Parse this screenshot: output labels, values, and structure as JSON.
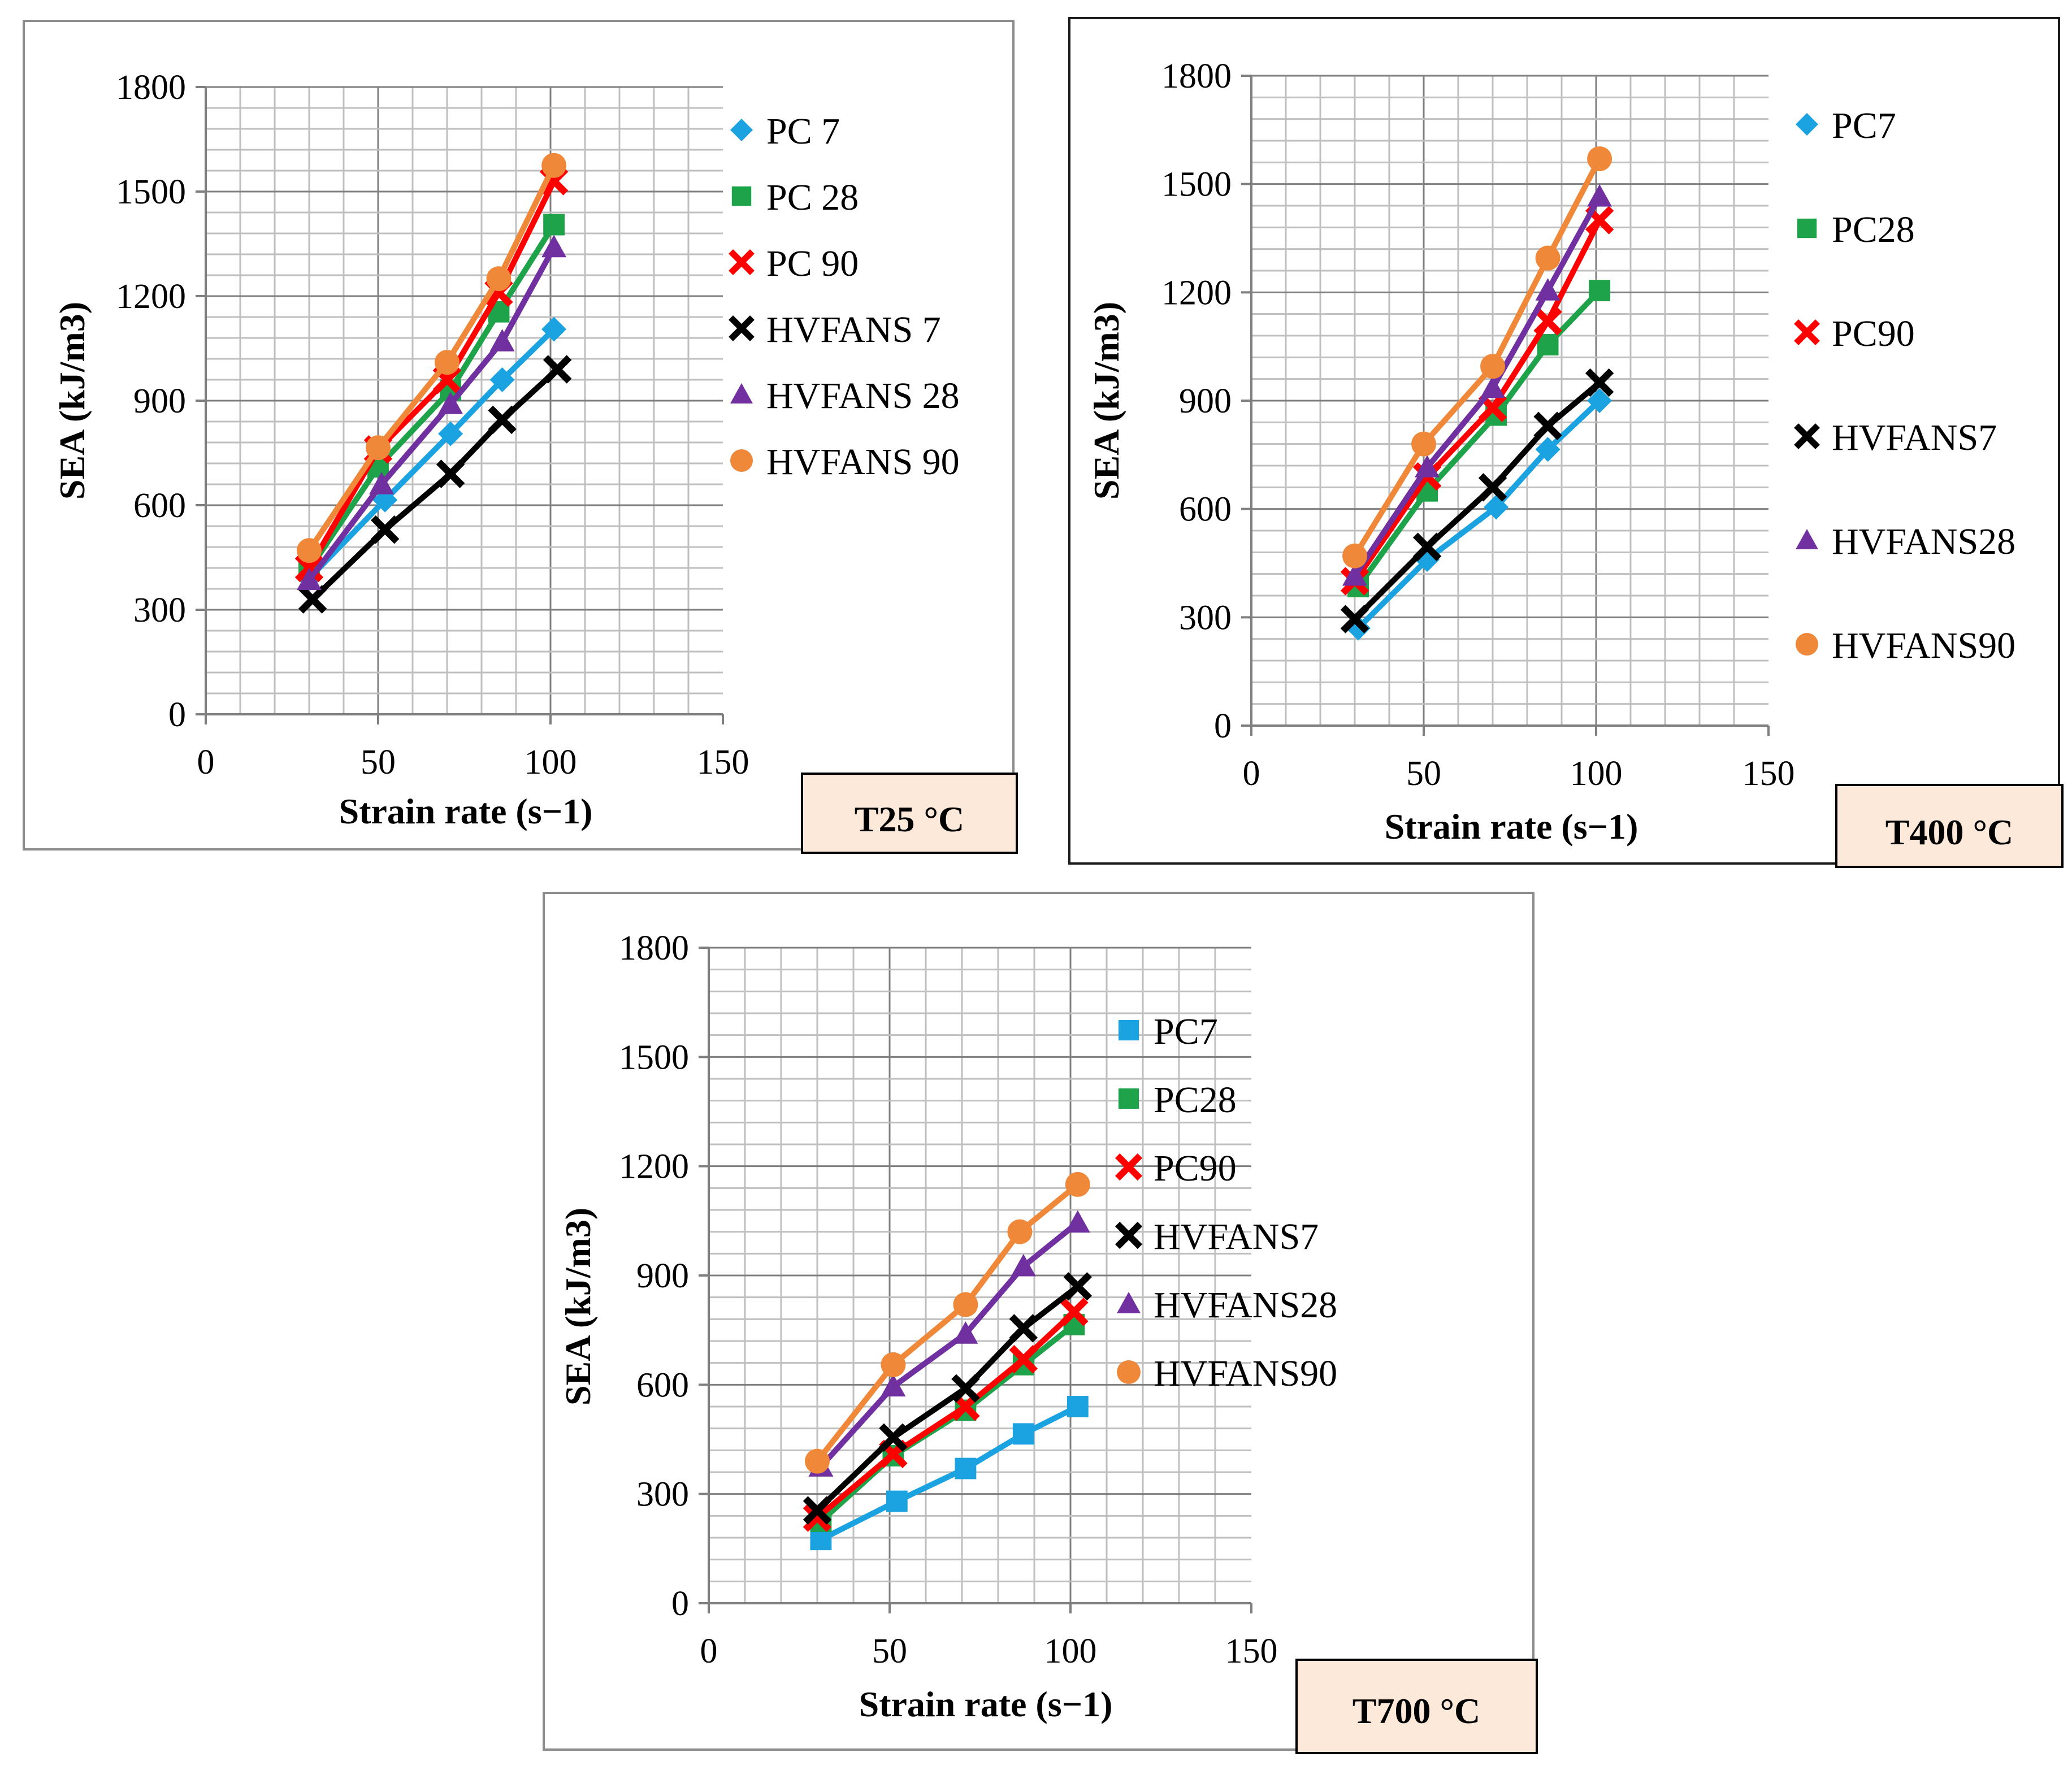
{
  "chart_data": [
    {
      "type": "line",
      "title": "",
      "xlabel": "Strain rate (s−1)",
      "ylabel": "SEA (kJ/m3)",
      "xlim": [
        0,
        150
      ],
      "ylim": [
        0,
        1800
      ],
      "xticks": [
        "0",
        "50",
        "100",
        "150"
      ],
      "yticks": [
        "0",
        "300",
        "600",
        "900",
        "1200",
        "1500",
        "1800"
      ],
      "grid": true,
      "temperature_label": "T25 °C",
      "series": [
        {
          "name": "PC 7",
          "color": "#1aa3e0",
          "marker": "diamond",
          "x": [
            30,
            52,
            71,
            86,
            101
          ],
          "values": [
            390,
            615,
            805,
            960,
            1105
          ]
        },
        {
          "name": "PC 28",
          "color": "#1fa34a",
          "marker": "square",
          "x": [
            30,
            50,
            71,
            85,
            101
          ],
          "values": [
            415,
            710,
            930,
            1155,
            1405
          ]
        },
        {
          "name": "PC 90",
          "color": "#ff0000",
          "marker": "x",
          "x": [
            30,
            50,
            70,
            85,
            101
          ],
          "values": [
            420,
            760,
            960,
            1210,
            1530
          ]
        },
        {
          "name": "HVFANS 7",
          "color": "#000000",
          "marker": "x",
          "x": [
            31,
            52,
            71,
            86,
            102
          ],
          "values": [
            330,
            530,
            690,
            845,
            990
          ]
        },
        {
          "name": "HVFANS 28",
          "color": "#7030a0",
          "marker": "triangle",
          "x": [
            30,
            51,
            71,
            86,
            101
          ],
          "values": [
            385,
            660,
            890,
            1070,
            1340
          ]
        },
        {
          "name": "HVFANS 90",
          "color": "#f0883a",
          "marker": "circle",
          "x": [
            30,
            50,
            70,
            85,
            101
          ],
          "values": [
            470,
            765,
            1010,
            1250,
            1575
          ]
        }
      ]
    },
    {
      "type": "line",
      "title": "",
      "xlabel": "Strain rate (s−1)",
      "ylabel": "SEA (kJ/m3)",
      "xlim": [
        0,
        150
      ],
      "ylim": [
        0,
        1800
      ],
      "xticks": [
        "0",
        "50",
        "100",
        "150"
      ],
      "yticks": [
        "0",
        "300",
        "600",
        "900",
        "1200",
        "1500",
        "1800"
      ],
      "grid": true,
      "temperature_label": "T400 °C",
      "series": [
        {
          "name": "PC7",
          "color": "#1aa3e0",
          "marker": "diamond",
          "x": [
            31,
            51,
            71,
            86,
            101
          ],
          "values": [
            270,
            460,
            605,
            765,
            900
          ]
        },
        {
          "name": "PC28",
          "color": "#1fa34a",
          "marker": "square",
          "x": [
            31,
            51,
            71,
            86,
            101
          ],
          "values": [
            385,
            650,
            860,
            1055,
            1205
          ]
        },
        {
          "name": "PC90",
          "color": "#ff0000",
          "marker": "x",
          "x": [
            30,
            51,
            70,
            86,
            101
          ],
          "values": [
            400,
            690,
            880,
            1120,
            1400
          ]
        },
        {
          "name": "HVFANS7",
          "color": "#000000",
          "marker": "x",
          "x": [
            30,
            51,
            70,
            86,
            101
          ],
          "values": [
            295,
            495,
            660,
            830,
            950
          ]
        },
        {
          "name": "HVFANS28",
          "color": "#7030a0",
          "marker": "triangle",
          "x": [
            30,
            51,
            70,
            86,
            101
          ],
          "values": [
            415,
            715,
            935,
            1205,
            1465
          ]
        },
        {
          "name": "HVFANS90",
          "color": "#f0883a",
          "marker": "circle",
          "x": [
            30,
            50,
            70,
            86,
            101
          ],
          "values": [
            470,
            780,
            995,
            1295,
            1570
          ]
        }
      ]
    },
    {
      "type": "line",
      "title": "",
      "xlabel": "Strain rate (s−1)",
      "ylabel": "SEA (kJ/m3)",
      "xlim": [
        0,
        150
      ],
      "ylim": [
        0,
        1800
      ],
      "xticks": [
        "0",
        "50",
        "100",
        "150"
      ],
      "yticks": [
        "0",
        "300",
        "600",
        "900",
        "1200",
        "1500",
        "1800"
      ],
      "grid": true,
      "temperature_label": "T700 °C",
      "series": [
        {
          "name": "PC7",
          "color": "#1aa3e0",
          "marker": "square",
          "x": [
            31,
            52,
            71,
            87,
            102
          ],
          "values": [
            175,
            280,
            370,
            465,
            540
          ]
        },
        {
          "name": "PC28",
          "color": "#1fa34a",
          "marker": "square",
          "x": [
            31,
            51,
            71,
            87,
            101
          ],
          "values": [
            225,
            405,
            530,
            655,
            765
          ]
        },
        {
          "name": "PC90",
          "color": "#ff0000",
          "marker": "x",
          "x": [
            30,
            51,
            71,
            87,
            101
          ],
          "values": [
            235,
            410,
            540,
            670,
            800
          ]
        },
        {
          "name": "HVFANS7",
          "color": "#000000",
          "marker": "x",
          "x": [
            30,
            51,
            71,
            87,
            102
          ],
          "values": [
            255,
            455,
            590,
            755,
            870
          ]
        },
        {
          "name": "HVFANS28",
          "color": "#7030a0",
          "marker": "triangle",
          "x": [
            31,
            51,
            71,
            87,
            102
          ],
          "values": [
            375,
            595,
            740,
            925,
            1045
          ]
        },
        {
          "name": "HVFANS90",
          "color": "#f0883a",
          "marker": "circle",
          "x": [
            30,
            51,
            71,
            86,
            102
          ],
          "values": [
            390,
            655,
            820,
            1020,
            1150
          ]
        }
      ]
    }
  ]
}
